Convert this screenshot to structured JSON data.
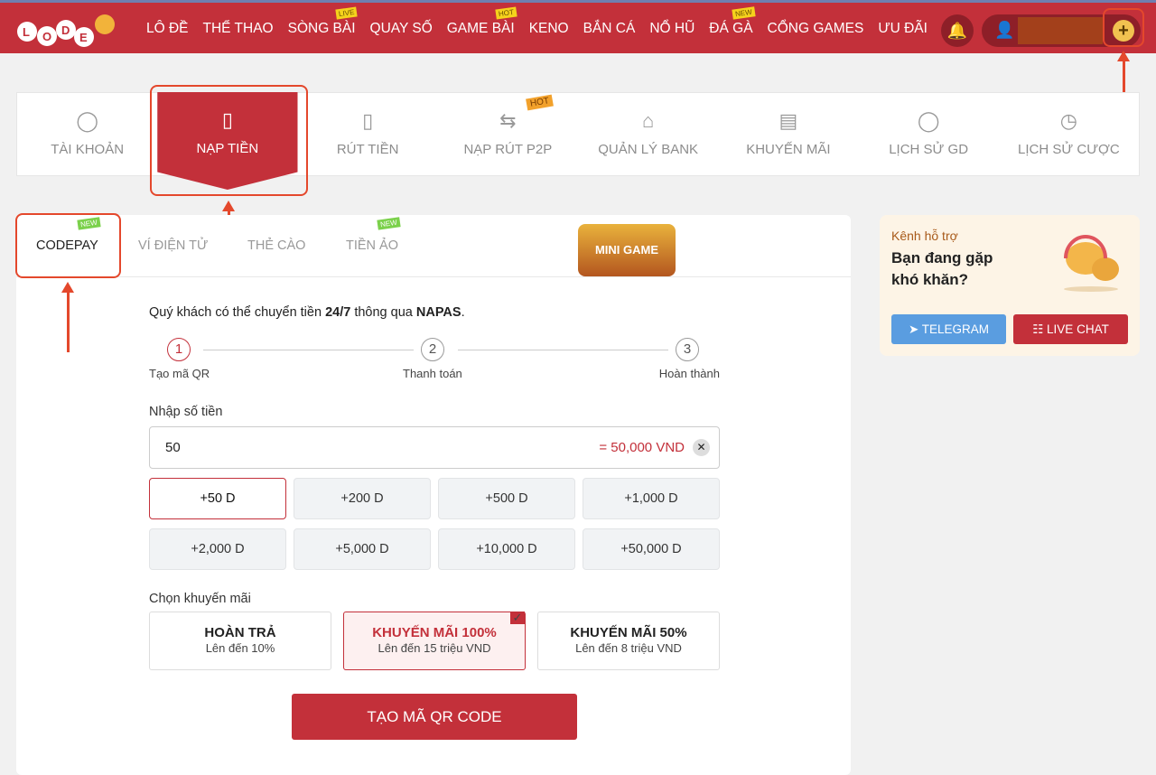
{
  "header": {
    "logo": "LODE",
    "nav": [
      {
        "label": "LÔ ĐỀ"
      },
      {
        "label": "THỂ THAO"
      },
      {
        "label": "SÒNG BÀI",
        "badge": "LIVE"
      },
      {
        "label": "QUAY SỐ"
      },
      {
        "label": "GAME BÀI",
        "badge": "HOT"
      },
      {
        "label": "KENO"
      },
      {
        "label": "BẮN CÁ"
      },
      {
        "label": "NỔ HŨ"
      },
      {
        "label": "ĐÁ GÀ",
        "badge": "NEW"
      },
      {
        "label": "CỔNG GAMES"
      },
      {
        "label": "ƯU ĐÃI"
      }
    ],
    "icons": [
      "bell-icon",
      "user-icon",
      "plus-icon"
    ]
  },
  "tabs": [
    {
      "label": "TÀI KHOẢN",
      "icon": "incognito-icon"
    },
    {
      "label": "NẠP TIỀN",
      "icon": "deposit-icon",
      "active": true
    },
    {
      "label": "RÚT TIỀN",
      "icon": "withdraw-icon"
    },
    {
      "label": "NẠP RÚT P2P",
      "icon": "p2p-icon",
      "badge": "HOT"
    },
    {
      "label": "QUẢN LÝ BANK",
      "icon": "bank-icon"
    },
    {
      "label": "KHUYẾN MÃI",
      "icon": "promo-icon"
    },
    {
      "label": "LỊCH SỬ GD",
      "icon": "history-icon"
    },
    {
      "label": "LỊCH SỬ CƯỢC",
      "icon": "clock-icon"
    }
  ],
  "subtabs": [
    {
      "label": "CODEPAY",
      "badge": "NEW"
    },
    {
      "label": "VÍ ĐIỆN TỬ"
    },
    {
      "label": "THẺ CÀO"
    },
    {
      "label": "TIỀN ẢO",
      "badge": "NEW"
    }
  ],
  "mini_game": "MINI GAME",
  "form": {
    "intro_pre": "Quý khách có thể chuyển tiền ",
    "intro_bold1": "24/7",
    "intro_mid": " thông qua ",
    "intro_bold2": "NAPAS",
    "intro_end": ".",
    "steps": [
      {
        "n": "1",
        "label": "Tạo mã QR"
      },
      {
        "n": "2",
        "label": "Thanh toán"
      },
      {
        "n": "3",
        "label": "Hoàn thành"
      }
    ],
    "amount_label": "Nhập số tiền",
    "amount_value": "50",
    "amount_converted": "= 50,000 VND",
    "quick_amounts": [
      "+50 D",
      "+200 D",
      "+500 D",
      "+1,000 D",
      "+2,000 D",
      "+5,000 D",
      "+10,000 D",
      "+50,000 D"
    ],
    "promo_label": "Chọn khuyến mãi",
    "promos": [
      {
        "title": "HOÀN TRẢ",
        "sub": "Lên đến 10%"
      },
      {
        "title": "KHUYẾN MÃI 100%",
        "sub": "Lên đến 15 triệu VND"
      },
      {
        "title": "KHUYẾN MÃI 50%",
        "sub": "Lên đến 8 triệu VND"
      }
    ],
    "submit": "TẠO MÃ QR CODE"
  },
  "support": {
    "kicker": "Kênh hỗ trợ",
    "question": "Bạn đang gặp khó khăn?",
    "telegram": "TELEGRAM",
    "livechat": "LIVE CHAT"
  },
  "colors": {
    "brand": "#c3303a",
    "telegram": "#5a9de0",
    "annotation": "#e4482c"
  }
}
